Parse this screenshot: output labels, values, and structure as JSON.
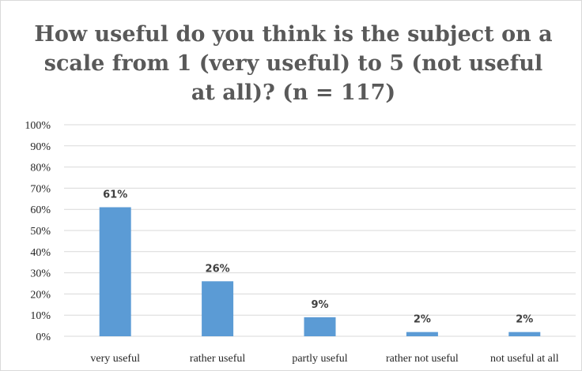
{
  "chart_data": {
    "type": "bar",
    "title": "How useful do you think is the subject on a scale from 1 (very useful) to 5 (not useful at all)? (n = 117)",
    "categories": [
      "very useful",
      "rather useful",
      "partly useful",
      "rather not useful",
      "not useful at all"
    ],
    "values": [
      61,
      26,
      9,
      2,
      2
    ],
    "data_labels": [
      "61%",
      "26%",
      "9%",
      "2%",
      "2%"
    ],
    "y_ticks": [
      "0%",
      "10%",
      "20%",
      "30%",
      "40%",
      "50%",
      "60%",
      "70%",
      "80%",
      "90%",
      "100%"
    ],
    "ylim": [
      0,
      100
    ],
    "xlabel": "",
    "ylabel": "",
    "grid": true,
    "legend": "none",
    "bar_color": "#5b9bd5",
    "grid_color": "#d9d9d9"
  }
}
